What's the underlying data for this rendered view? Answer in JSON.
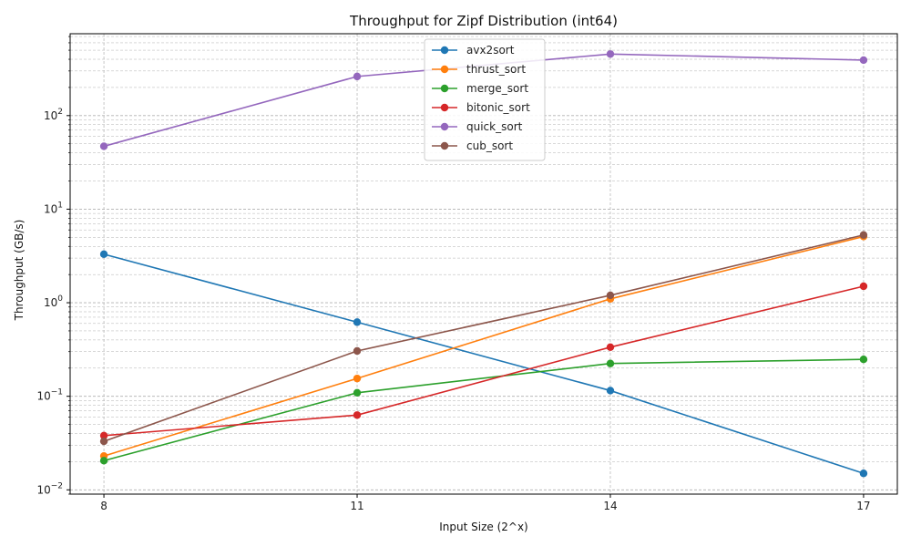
{
  "chart_data": {
    "type": "line",
    "title": "Throughput for Zipf Distribution (int64)",
    "xlabel": "Input Size (2^x)",
    "ylabel": "Throughput (GB/s)",
    "x": [
      8,
      11,
      14,
      17
    ],
    "xlim": [
      7.6,
      17.4
    ],
    "yscale": "log",
    "ylim": [
      0.009,
      750
    ],
    "y_ticks": [
      {
        "value": 0.01,
        "base": "10",
        "exp": "−2"
      },
      {
        "value": 0.1,
        "base": "10",
        "exp": "−1"
      },
      {
        "value": 1,
        "base": "10",
        "exp": "0"
      },
      {
        "value": 10,
        "base": "10",
        "exp": "1"
      },
      {
        "value": 100,
        "base": "10",
        "exp": "2"
      }
    ],
    "grid": true,
    "legend_position": "top-center",
    "series": [
      {
        "name": "avx2sort",
        "color": "#1f77b4",
        "values": [
          3.3,
          0.62,
          0.115,
          0.015
        ]
      },
      {
        "name": "thrust_sort",
        "color": "#ff7f0e",
        "values": [
          0.023,
          0.155,
          1.1,
          5.1
        ]
      },
      {
        "name": "merge_sort",
        "color": "#2ca02c",
        "values": [
          0.0205,
          0.109,
          0.224,
          0.248
        ]
      },
      {
        "name": "bitonic_sort",
        "color": "#d62728",
        "values": [
          0.038,
          0.063,
          0.335,
          1.5
        ]
      },
      {
        "name": "quick_sort",
        "color": "#9467bd",
        "values": [
          47,
          262,
          455,
          392
        ]
      },
      {
        "name": "cub_sort",
        "color": "#8c564b",
        "values": [
          0.033,
          0.305,
          1.2,
          5.3
        ]
      }
    ]
  }
}
